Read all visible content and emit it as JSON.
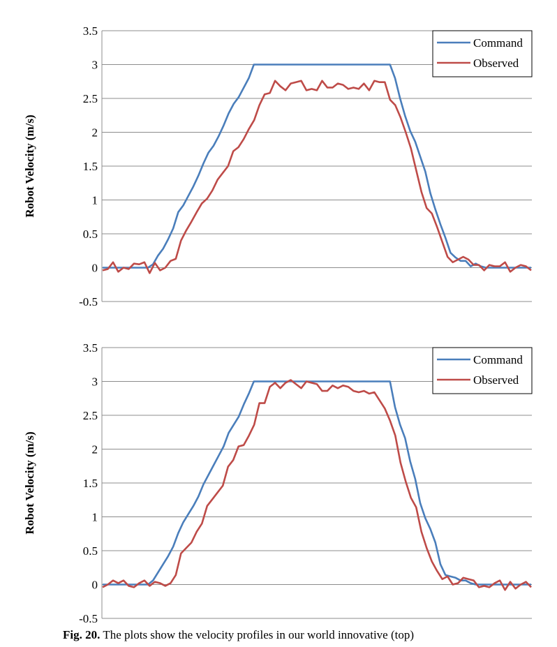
{
  "chart_data": [
    {
      "type": "line",
      "title": "",
      "xlabel": "",
      "ylabel": "Robot Velocity (m/s)",
      "ylim": [
        -0.5,
        3.5
      ],
      "yticks": [
        "3.5",
        "3",
        "2.5",
        "2",
        "1.5",
        "1",
        "0.5",
        "0",
        "-0.5"
      ],
      "grid": true,
      "legend": "top-right",
      "series": [
        {
          "name": "Command",
          "color": "#4a7ebb",
          "values": [
            0,
            0,
            0,
            0,
            0,
            0,
            0,
            0,
            0,
            0,
            0.05,
            0.18,
            0.28,
            0.42,
            0.58,
            0.82,
            0.92,
            1.06,
            1.2,
            1.36,
            1.54,
            1.7,
            1.8,
            1.94,
            2.1,
            2.28,
            2.42,
            2.52,
            2.66,
            2.8,
            3,
            3,
            3,
            3,
            3,
            3,
            3,
            3,
            3,
            3,
            3,
            3,
            3,
            3,
            3,
            3,
            3,
            3,
            3,
            3,
            3,
            3,
            3,
            3,
            3,
            3,
            3,
            3,
            2.8,
            2.5,
            2.24,
            2.02,
            1.86,
            1.64,
            1.42,
            1.1,
            0.86,
            0.64,
            0.44,
            0.22,
            0.15,
            0.1,
            0.1,
            0.02,
            0.06,
            0.02,
            0,
            0,
            0,
            0,
            0,
            0,
            0,
            0,
            0,
            0
          ]
        },
        {
          "name": "Observed",
          "color": "#be4b48",
          "values": [
            -0.04,
            -0.02,
            0.08,
            -0.06,
            0,
            -0.02,
            0.06,
            0.05,
            0.08,
            -0.08,
            0.07,
            -0.04,
            0,
            0.1,
            0.13,
            0.4,
            0.55,
            0.68,
            0.82,
            0.95,
            1.02,
            1.14,
            1.3,
            1.4,
            1.5,
            1.72,
            1.78,
            1.9,
            2.05,
            2.18,
            2.4,
            2.56,
            2.58,
            2.76,
            2.68,
            2.62,
            2.72,
            2.74,
            2.76,
            2.62,
            2.64,
            2.62,
            2.76,
            2.66,
            2.66,
            2.72,
            2.7,
            2.64,
            2.66,
            2.64,
            2.72,
            2.62,
            2.76,
            2.74,
            2.74,
            2.48,
            2.4,
            2.22,
            2.0,
            1.76,
            1.44,
            1.12,
            0.88,
            0.8,
            0.6,
            0.38,
            0.16,
            0.08,
            0.12,
            0.16,
            0.12,
            0.04,
            0.04,
            -0.04,
            0.04,
            0.02,
            0.02,
            0.08,
            -0.06,
            0,
            0.04,
            0.02,
            -0.04
          ]
        }
      ]
    },
    {
      "type": "line",
      "title": "",
      "xlabel": "",
      "ylabel": "Robot Velocity (m/s)",
      "ylim": [
        -0.5,
        3.5
      ],
      "yticks": [
        "3.5",
        "3",
        "2.5",
        "2",
        "1.5",
        "1",
        "0.5",
        "0",
        "-0.5"
      ],
      "grid": true,
      "legend": "top-right",
      "series": [
        {
          "name": "Command",
          "color": "#4a7ebb",
          "values": [
            0,
            0,
            0,
            0,
            0,
            0,
            0,
            0,
            0,
            0,
            0.06,
            0.18,
            0.3,
            0.42,
            0.56,
            0.76,
            0.92,
            1.04,
            1.16,
            1.3,
            1.48,
            1.62,
            1.76,
            1.9,
            2.04,
            2.24,
            2.36,
            2.48,
            2.66,
            2.82,
            3,
            3,
            3,
            3,
            3,
            3,
            3,
            3,
            3,
            3,
            3,
            3,
            3,
            3,
            3,
            3,
            3,
            3,
            3,
            3,
            3,
            3,
            3,
            3,
            3,
            3,
            3,
            3,
            2.62,
            2.36,
            2.16,
            1.82,
            1.56,
            1.2,
            0.98,
            0.82,
            0.62,
            0.3,
            0.14,
            0.12,
            0.1,
            0.06,
            0.06,
            0.02,
            0,
            0,
            0,
            0,
            0,
            0,
            0,
            0,
            0,
            0,
            0,
            0
          ]
        },
        {
          "name": "Observed",
          "color": "#be4b48",
          "values": [
            -0.04,
            0,
            0.06,
            0.02,
            0.06,
            -0.02,
            -0.04,
            0.02,
            0.06,
            -0.02,
            0.04,
            0.02,
            -0.02,
            0.02,
            0.14,
            0.46,
            0.54,
            0.62,
            0.78,
            0.9,
            1.16,
            1.26,
            1.36,
            1.46,
            1.74,
            1.84,
            2.04,
            2.06,
            2.2,
            2.36,
            2.68,
            2.68,
            2.92,
            2.98,
            2.9,
            2.98,
            3.02,
            2.96,
            2.9,
            3,
            2.98,
            2.96,
            2.86,
            2.86,
            2.94,
            2.9,
            2.94,
            2.92,
            2.86,
            2.84,
            2.86,
            2.82,
            2.84,
            2.72,
            2.6,
            2.42,
            2.2,
            1.8,
            1.52,
            1.28,
            1.14,
            0.78,
            0.54,
            0.34,
            0.2,
            0.08,
            0.12,
            0,
            0.02,
            0.1,
            0.08,
            0.06,
            -0.04,
            -0.02,
            -0.04,
            0.02,
            0.06,
            -0.08,
            0.04,
            -0.06,
            0,
            0.04,
            -0.04
          ]
        }
      ]
    }
  ],
  "caption": {
    "label": "Fig. 20.",
    "text": "The plots show the velocity profiles in our world innovative (top)"
  }
}
